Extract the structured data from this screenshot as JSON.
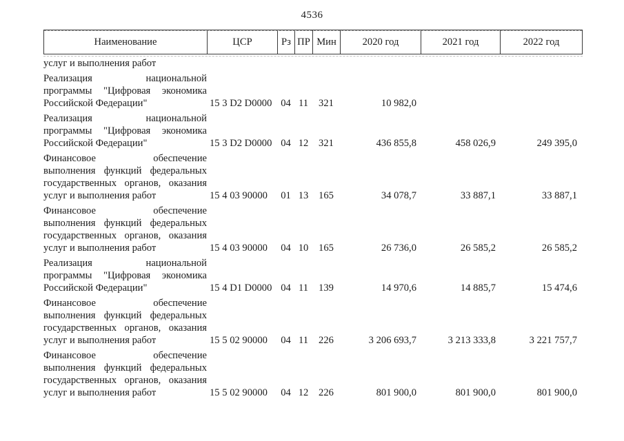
{
  "page": {
    "number": "4536"
  },
  "colors": {
    "background": "#ffffff",
    "text": "#1c1c1c",
    "table_border": "#383838"
  },
  "table": {
    "header": {
      "name": "Наименование",
      "csr": "ЦСР",
      "rz": "Рз",
      "pr": "ПР",
      "min": "Мин",
      "y2020": "2020 год",
      "y2021": "2021 год",
      "y2022": "2022 год"
    },
    "continuation_text": "услуг и выполнения работ",
    "rows": [
      {
        "name_lines": [
          "Реализация национальной",
          "программы \"Цифровая экономика",
          "Российской Федерации\""
        ],
        "csr": "15 3 D2 D0000",
        "rz": "04",
        "pr": "11",
        "min": "321",
        "y2020": "10 982,0",
        "y2021": "",
        "y2022": ""
      },
      {
        "name_lines": [
          "Реализация национальной",
          "программы \"Цифровая экономика",
          "Российской Федерации\""
        ],
        "csr": "15 3 D2 D0000",
        "rz": "04",
        "pr": "12",
        "min": "321",
        "y2020": "436 855,8",
        "y2021": "458 026,9",
        "y2022": "249 395,0"
      },
      {
        "name_lines": [
          "Финансовое обеспечение",
          "выполнения функций федеральных",
          "государственных органов, оказания",
          "услуг и выполнения работ"
        ],
        "csr": "15 4 03 90000",
        "rz": "01",
        "pr": "13",
        "min": "165",
        "y2020": "34 078,7",
        "y2021": "33 887,1",
        "y2022": "33 887,1"
      },
      {
        "name_lines": [
          "Финансовое обеспечение",
          "выполнения функций федеральных",
          "государственных органов, оказания",
          "услуг и выполнения работ"
        ],
        "csr": "15 4 03 90000",
        "rz": "04",
        "pr": "10",
        "min": "165",
        "y2020": "26 736,0",
        "y2021": "26 585,2",
        "y2022": "26 585,2"
      },
      {
        "name_lines": [
          "Реализация национальной",
          "программы \"Цифровая экономика",
          "Российской Федерации\""
        ],
        "csr": "15 4 D1 D0000",
        "rz": "04",
        "pr": "11",
        "min": "139",
        "y2020": "14 970,6",
        "y2021": "14 885,7",
        "y2022": "15 474,6"
      },
      {
        "name_lines": [
          "Финансовое обеспечение",
          "выполнения функций федеральных",
          "государственных органов, оказания",
          "услуг и выполнения работ"
        ],
        "csr": "15 5 02 90000",
        "rz": "04",
        "pr": "11",
        "min": "226",
        "y2020": "3 206 693,7",
        "y2021": "3 213 333,8",
        "y2022": "3 221 757,7"
      },
      {
        "name_lines": [
          "Финансовое обеспечение",
          "выполнения функций федеральных",
          "государственных органов, оказания",
          "услуг и выполнения работ"
        ],
        "csr": "15 5 02 90000",
        "rz": "04",
        "pr": "12",
        "min": "226",
        "y2020": "801 900,0",
        "y2021": "801 900,0",
        "y2022": "801 900,0"
      }
    ]
  }
}
